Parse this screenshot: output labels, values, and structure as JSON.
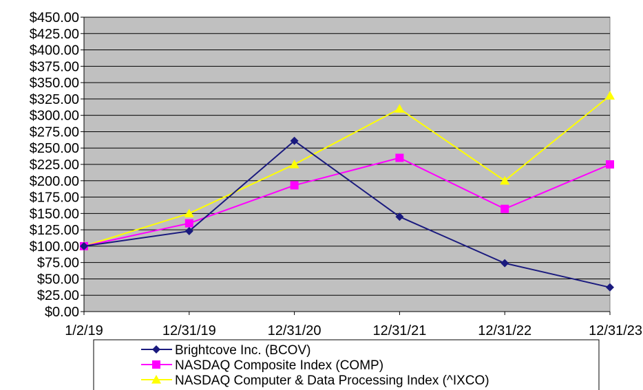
{
  "chart_data": {
    "type": "line",
    "categories": [
      "1/2/19",
      "12/31/19",
      "12/31/20",
      "12/31/21",
      "12/31/22",
      "12/31/23"
    ],
    "series": [
      {
        "name": "Brightcove Inc. (BCOV)",
        "values": [
          100.0,
          123.0,
          261.0,
          145.0,
          74.0,
          37.0
        ],
        "color": "#1a1a7e",
        "marker": "diamond"
      },
      {
        "name": "NASDAQ Composite Index (COMP)",
        "values": [
          100.0,
          135.0,
          193.0,
          235.0,
          157.0,
          225.0
        ],
        "color": "#ff00ff",
        "marker": "square"
      },
      {
        "name": "NASDAQ Computer & Data Processing Index (^IXCO)",
        "values": [
          100.0,
          150.0,
          225.0,
          310.0,
          200.0,
          330.0
        ],
        "color": "#ffff00",
        "marker": "triangle"
      }
    ],
    "ylim": [
      0,
      450
    ],
    "yticks": [
      "$0.00",
      "$25.00",
      "$50.00",
      "$75.00",
      "$100.00",
      "$125.00",
      "$150.00",
      "$175.00",
      "$200.00",
      "$225.00",
      "$250.00",
      "$275.00",
      "$300.00",
      "$325.00",
      "$350.00",
      "$375.00",
      "$400.00",
      "$425.00",
      "$450.00"
    ],
    "title": "",
    "xlabel": "",
    "ylabel": "",
    "grid": true,
    "plot_background": "#c0c0c0",
    "legend_position": "bottom"
  }
}
